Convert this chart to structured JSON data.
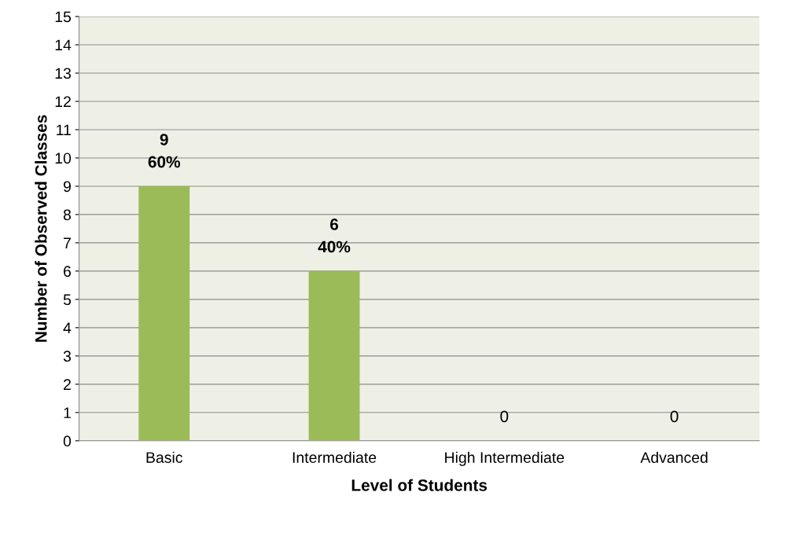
{
  "chart_data": {
    "type": "bar",
    "xlabel": "Level of Students",
    "ylabel": "Number of Observed Classes",
    "categories": [
      "Basic",
      "Intermediate",
      "High Intermediate",
      "Advanced"
    ],
    "values": [
      9,
      6,
      0,
      0
    ],
    "value_labels": [
      "9\n60%",
      "6\n40%",
      "0",
      "0"
    ],
    "color": "#9bbb59",
    "ylim": [
      0,
      15
    ],
    "yticks": [
      0,
      1,
      2,
      3,
      4,
      5,
      6,
      7,
      8,
      9,
      10,
      11,
      12,
      13,
      14,
      15
    ],
    "grid": "y",
    "legend": false
  }
}
